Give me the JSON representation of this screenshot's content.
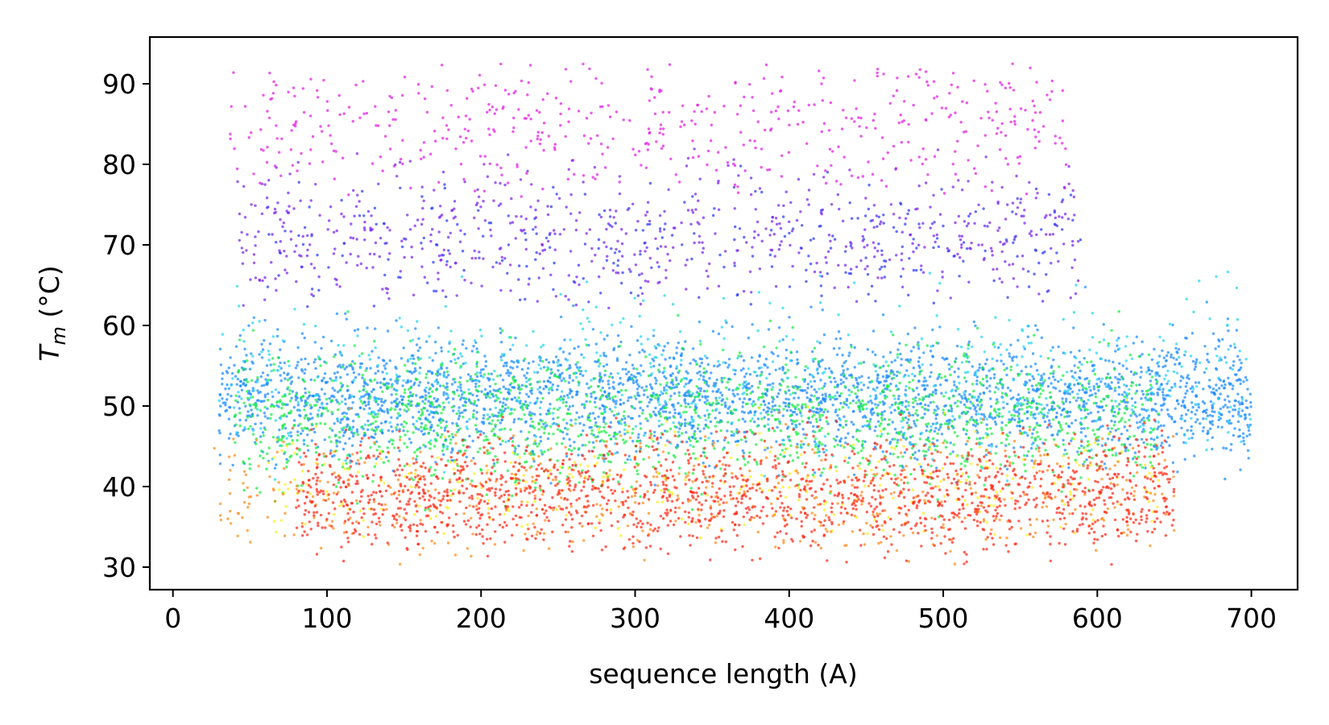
{
  "chart_data": {
    "type": "scatter",
    "title": "",
    "xlabel": "sequence length (A)",
    "ylabel_main": "T",
    "ylabel_sub": "m",
    "ylabel_rest": " (°C)",
    "xlim": [
      -15,
      730
    ],
    "ylim": [
      27.2,
      95.8
    ],
    "xticks": [
      0,
      100,
      200,
      300,
      400,
      500,
      600,
      700
    ],
    "yticks": [
      30,
      40,
      50,
      60,
      70,
      80,
      90
    ],
    "grid": false,
    "legend": "none",
    "marker_size": 1.7,
    "marker_alpha": 0.72,
    "series": [
      {
        "color": "#e31ce3",
        "x_range": [
          35,
          580
        ],
        "y_range": [
          76,
          92.5
        ],
        "y_mean": 85,
        "y_sd": 4.5,
        "count": 520
      },
      {
        "color": "#7a22f0",
        "x_range": [
          40,
          590
        ],
        "y_range": [
          62,
          82
        ],
        "y_mean": 71,
        "y_sd": 4.5,
        "count": 650
      },
      {
        "color": "#2a3cf5",
        "x_range": [
          60,
          590
        ],
        "y_range": [
          62,
          80
        ],
        "y_mean": 70,
        "y_sd": 4,
        "count": 280
      },
      {
        "color": "#1a8cff",
        "x_range": [
          30,
          700
        ],
        "y_range": [
          40,
          66
        ],
        "y_mean": 51,
        "y_sd": 3.6,
        "count": 3000
      },
      {
        "color": "#22d6f2",
        "x_range": [
          30,
          700
        ],
        "y_range": [
          40,
          68
        ],
        "y_mean": 53,
        "y_sd": 5,
        "count": 650
      },
      {
        "color": "#18f040",
        "x_range": [
          40,
          640
        ],
        "y_range": [
          36,
          62
        ],
        "y_mean": 48.5,
        "y_sd": 4,
        "count": 1500
      },
      {
        "color": "#ffee10",
        "x_range": [
          60,
          640
        ],
        "y_range": [
          33,
          52
        ],
        "y_mean": 40,
        "y_sd": 3.5,
        "count": 320
      },
      {
        "color": "#ff8a1a",
        "x_range": [
          20,
          650
        ],
        "y_range": [
          30.3,
          50
        ],
        "y_mean": 39,
        "y_sd": 3.8,
        "count": 550
      },
      {
        "color": "#ff2a18",
        "x_range": [
          80,
          650
        ],
        "y_range": [
          30.3,
          50
        ],
        "y_mean": 39,
        "y_sd": 3.4,
        "count": 1700
      }
    ]
  }
}
